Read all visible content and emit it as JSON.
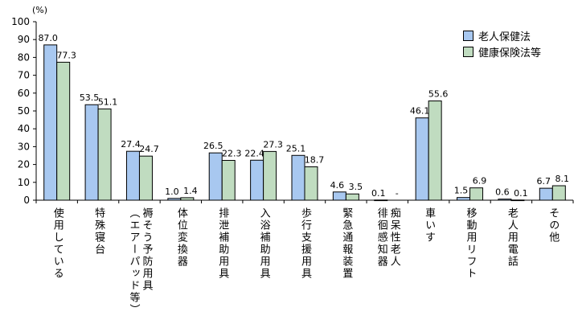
{
  "chart_data": {
    "type": "bar",
    "ylabel": "(%)",
    "ylim": [
      0,
      100
    ],
    "yticks": [
      0,
      10,
      20,
      30,
      40,
      50,
      60,
      70,
      80,
      90,
      100
    ],
    "grid": false,
    "legend_position": "top-right",
    "categories": [
      "使用している",
      "特殊寝台",
      "褥そう予防用具\n（エアーパッド等）",
      "体位変換器",
      "排泄補助用具",
      "入浴補助用具",
      "歩行支援用具",
      "緊急通報装置",
      "痴呆性老人\n徘徊感知器",
      "車いす",
      "移動用リフト",
      "老人用電話",
      "その他"
    ],
    "series": [
      {
        "name": "老人保健法",
        "color": "#a8c8f0",
        "values": [
          87.0,
          53.5,
          27.4,
          1.0,
          26.5,
          22.4,
          25.1,
          4.6,
          0.1,
          46.1,
          1.5,
          0.6,
          6.7
        ],
        "labels": [
          "87.0",
          "53.5",
          "27.4",
          "1.0",
          "26.5",
          "22.4",
          "25.1",
          "4.6",
          "0.1",
          "46.1",
          "1.5",
          "0.6",
          "6.7"
        ]
      },
      {
        "name": "健康保険法等",
        "color": "#c0dcc0",
        "values": [
          77.3,
          51.1,
          24.7,
          1.4,
          22.3,
          27.3,
          18.7,
          3.5,
          null,
          55.6,
          6.9,
          0.1,
          8.1
        ],
        "labels": [
          "77.3",
          "51.1",
          "24.7",
          "1.4",
          "22.3",
          "27.3",
          "18.7",
          "3.5",
          "-",
          "55.6",
          "6.9",
          "0.1",
          "8.1"
        ]
      }
    ]
  }
}
